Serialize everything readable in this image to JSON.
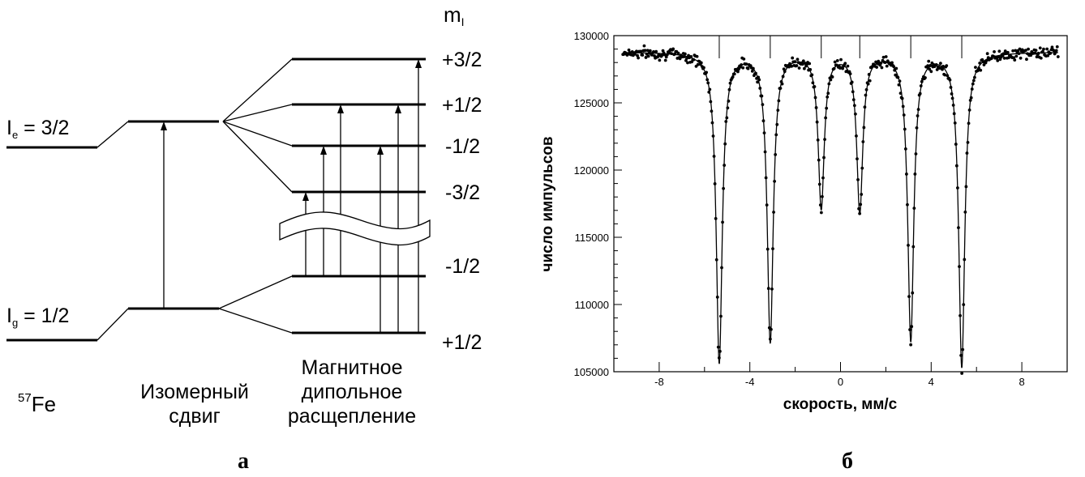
{
  "diagram": {
    "m_label_base": "m",
    "m_label_sub": "I",
    "excited_base": "I",
    "excited_sub": "e",
    "excited_value": " = 3/2",
    "ground_base": "I",
    "ground_sub": "g",
    "ground_value": " = 1/2",
    "isotope_sup": "57",
    "isotope_base": "Fe",
    "excited_m": [
      "+3/2",
      "+1/2",
      "-1/2",
      "-3/2"
    ],
    "ground_m": [
      "-1/2",
      "+1/2"
    ],
    "isomer_shift_lines": [
      "Изомерный",
      "сдвиг"
    ],
    "magnetic_lines": [
      "Магнитное",
      "дипольное",
      "расщепление"
    ],
    "panel_label": "а"
  },
  "chart_data": {
    "type": "scatter",
    "xlabel": "скорость, мм/с",
    "ylabel": "число импульсов",
    "xlim": [
      -10,
      10
    ],
    "ylim": [
      105000,
      130000
    ],
    "xticks": [
      -8,
      -4,
      0,
      4,
      8
    ],
    "yticks": [
      105000,
      110000,
      115000,
      120000,
      125000,
      130000
    ],
    "baseline": 128800,
    "peaks": [
      {
        "position": -5.35,
        "minimum": 105700
      },
      {
        "position": -3.1,
        "minimum": 107300
      },
      {
        "position": -0.85,
        "minimum": 117300
      },
      {
        "position": 0.85,
        "minimum": 117000
      },
      {
        "position": 3.1,
        "minimum": 107400
      },
      {
        "position": 5.35,
        "minimum": 105400
      }
    ],
    "stick_positions": [
      -5.35,
      -3.1,
      -0.85,
      0.85,
      3.1,
      5.35
    ],
    "grid": false,
    "panel_label": "б"
  }
}
